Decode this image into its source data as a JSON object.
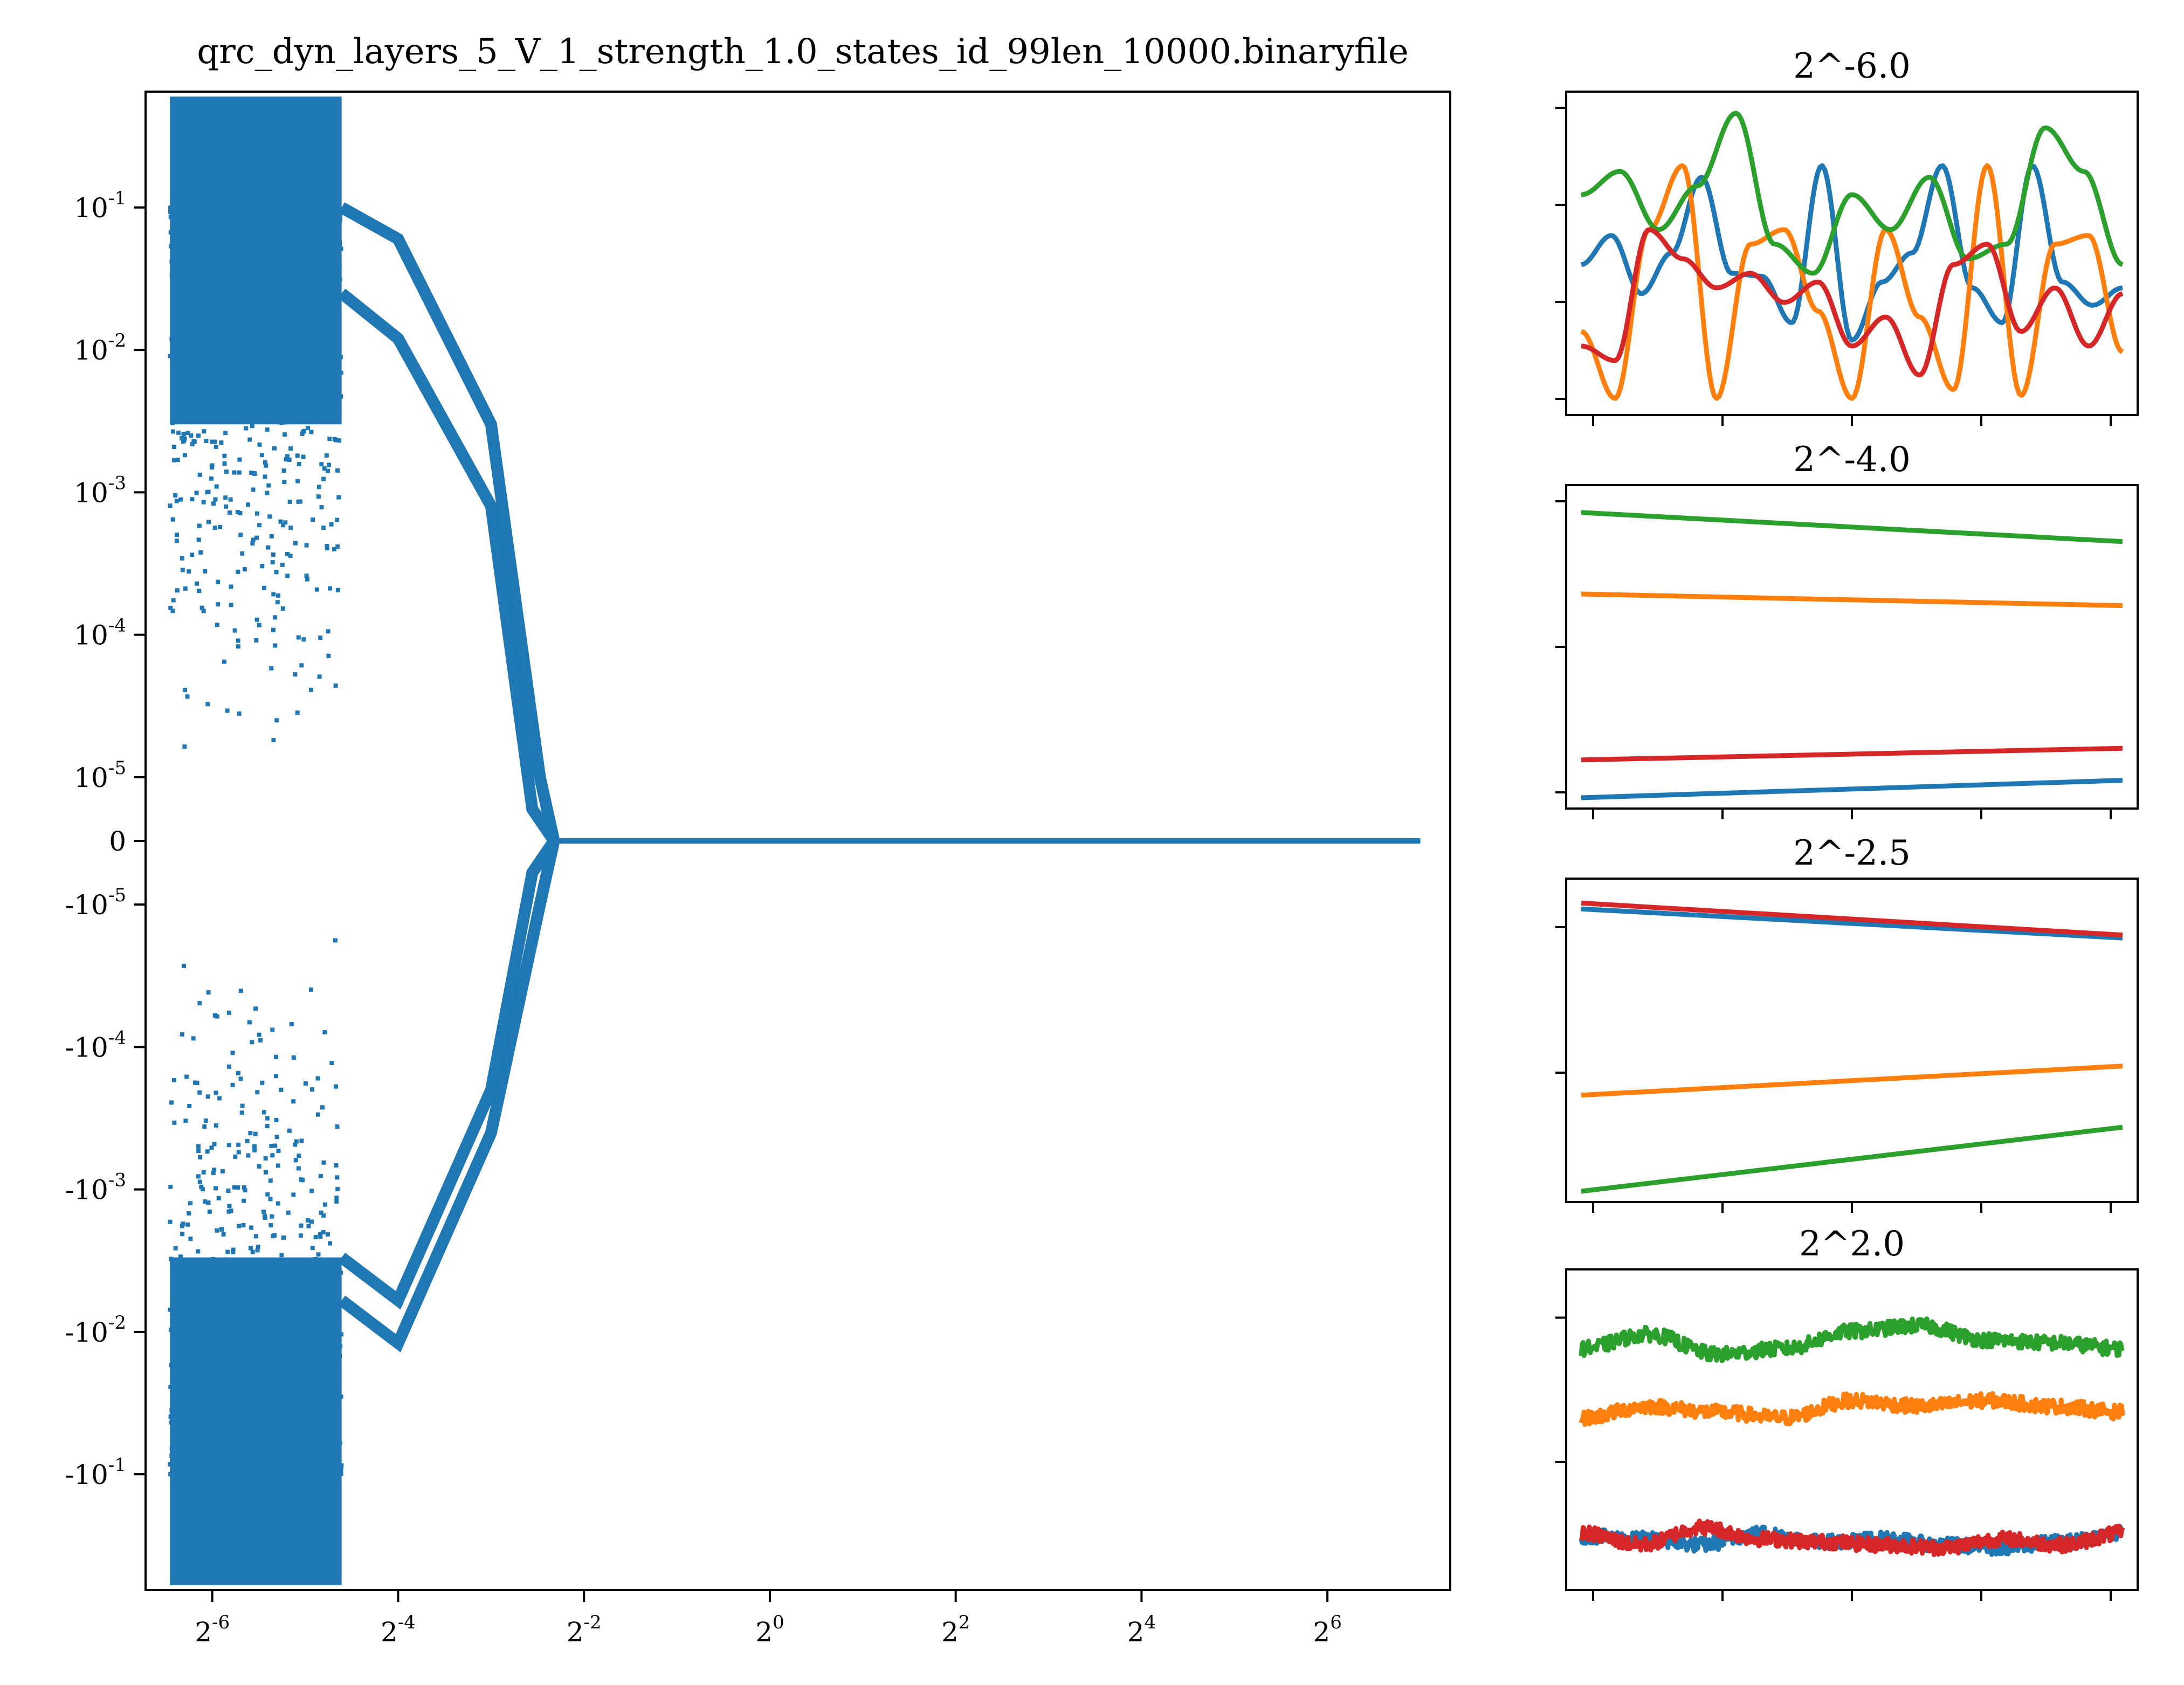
{
  "figure_title": "qrc_dyn_layers_5_V_1_strength_1.0_states_id_99len_10000.binaryfile",
  "colors": {
    "blue": "#1f77b4",
    "orange": "#ff7f0e",
    "green": "#2ca02c",
    "red": "#d62728"
  },
  "chart_data": [
    {
      "type": "scatter",
      "title": "qrc_dyn_layers_5_V_1_strength_1.0_states_id_99len_10000.binaryfile",
      "xscale": "log2",
      "yscale": "symlog",
      "xlim": [
        0.0095,
        160
      ],
      "ylim": [
        -0.65,
        0.65
      ],
      "xticks": [
        {
          "value": 0.015625,
          "base": "2",
          "exp": "-6"
        },
        {
          "value": 0.0625,
          "base": "2",
          "exp": "-4"
        },
        {
          "value": 0.25,
          "base": "2",
          "exp": "-2"
        },
        {
          "value": 1,
          "base": "2",
          "exp": "0"
        },
        {
          "value": 4,
          "base": "2",
          "exp": "2"
        },
        {
          "value": 16,
          "base": "2",
          "exp": "4"
        },
        {
          "value": 64,
          "base": "2",
          "exp": "6"
        }
      ],
      "yticks": [
        {
          "value": 0.1,
          "base": "10",
          "exp": "-1"
        },
        {
          "value": 0.01,
          "base": "10",
          "exp": "-2"
        },
        {
          "value": 0.001,
          "base": "10",
          "exp": "-3"
        },
        {
          "value": 0.0001,
          "base": "10",
          "exp": "-4"
        },
        {
          "value": 1e-05,
          "base": "10",
          "exp": "-5"
        },
        {
          "value": 0,
          "base": "0",
          "exp": ""
        },
        {
          "value": -1e-05,
          "base": "-10",
          "exp": "-5"
        },
        {
          "value": -0.0001,
          "base": "-10",
          "exp": "-4"
        },
        {
          "value": -0.001,
          "base": "-10",
          "exp": "-3"
        },
        {
          "value": -0.01,
          "base": "-10",
          "exp": "-2"
        },
        {
          "value": -0.1,
          "base": "-10",
          "exp": "-1"
        }
      ],
      "series": [
        {
          "color": "blue",
          "x_range": [
            0.0114,
            128
          ],
          "dense_region_end_x": 0.041,
          "bands_upper": [
            {
              "x": [
                0.041,
                0.0625,
                0.125,
                0.18,
                0.2
              ],
              "y": [
                0.1,
                0.06,
                0.003,
                1e-05,
                0
              ]
            },
            {
              "x": [
                0.041,
                0.0625,
                0.125,
                0.17,
                0.2
              ],
              "y": [
                0.025,
                0.012,
                0.0008,
                5e-06,
                0
              ]
            }
          ],
          "bands_lower": [
            {
              "x": [
                0.041,
                0.0625,
                0.125,
                0.18,
                0.2
              ],
              "y": [
                -0.006,
                -0.012,
                -0.0004,
                -1e-05,
                0
              ]
            },
            {
              "x": [
                0.041,
                0.0625,
                0.125,
                0.17,
                0.2
              ],
              "y": [
                -0.003,
                -0.006,
                -0.0002,
                -5e-06,
                0
              ]
            }
          ]
        }
      ]
    },
    {
      "type": "line",
      "title": "2^-6.0",
      "series": [
        {
          "color": "blue",
          "values": [
            0.48,
            0.58,
            0.38,
            0.52,
            0.78,
            0.45,
            0.44,
            0.28,
            0.82,
            0.22,
            0.42,
            0.52,
            0.82,
            0.4,
            0.28,
            0.82,
            0.42,
            0.34,
            0.4
          ]
        },
        {
          "color": "orange",
          "values": [
            0.25,
            0.02,
            0.6,
            0.82,
            0.02,
            0.55,
            0.6,
            0.32,
            0.02,
            0.6,
            0.3,
            0.05,
            0.82,
            0.03,
            0.55,
            0.58,
            0.18
          ]
        },
        {
          "color": "green",
          "values": [
            0.72,
            0.8,
            0.6,
            0.75,
            1.0,
            0.55,
            0.45,
            0.72,
            0.6,
            0.78,
            0.5,
            0.55,
            0.95,
            0.8,
            0.48
          ]
        },
        {
          "color": "red",
          "values": [
            0.2,
            0.15,
            0.6,
            0.5,
            0.4,
            0.45,
            0.35,
            0.42,
            0.2,
            0.3,
            0.1,
            0.48,
            0.55,
            0.25,
            0.4,
            0.2,
            0.38
          ]
        }
      ]
    },
    {
      "type": "line",
      "title": "2^-4.0",
      "series": [
        {
          "color": "green",
          "values": [
            0.98,
            0.88
          ]
        },
        {
          "color": "orange",
          "values": [
            0.7,
            0.66
          ]
        },
        {
          "color": "red",
          "values": [
            0.13,
            0.17
          ]
        },
        {
          "color": "blue",
          "values": [
            0.0,
            0.06
          ]
        }
      ]
    },
    {
      "type": "line",
      "title": "2^-2.5",
      "series": [
        {
          "color": "blue",
          "values": [
            0.97,
            0.87
          ]
        },
        {
          "color": "red",
          "values": [
            0.99,
            0.88
          ]
        },
        {
          "color": "orange",
          "values": [
            0.33,
            0.43
          ]
        },
        {
          "color": "green",
          "values": [
            0.0,
            0.22
          ]
        }
      ]
    },
    {
      "type": "line",
      "title": "2^2.0",
      "series": [
        {
          "color": "blue",
          "values": [
            0.15,
            0.14,
            0.12,
            0.16,
            0.13,
            0.14,
            0.12,
            0.11,
            0.13,
            0.16
          ]
        },
        {
          "color": "red",
          "values": [
            0.16,
            0.12,
            0.18,
            0.14,
            0.13,
            0.12,
            0.11,
            0.14,
            0.12,
            0.16
          ]
        },
        {
          "color": "orange",
          "values": [
            0.56,
            0.6,
            0.58,
            0.56,
            0.62,
            0.6,
            0.62,
            0.6,
            0.58
          ]
        },
        {
          "color": "green",
          "values": [
            0.8,
            0.85,
            0.78,
            0.8,
            0.86,
            0.88,
            0.83,
            0.82,
            0.8
          ]
        }
      ]
    }
  ]
}
